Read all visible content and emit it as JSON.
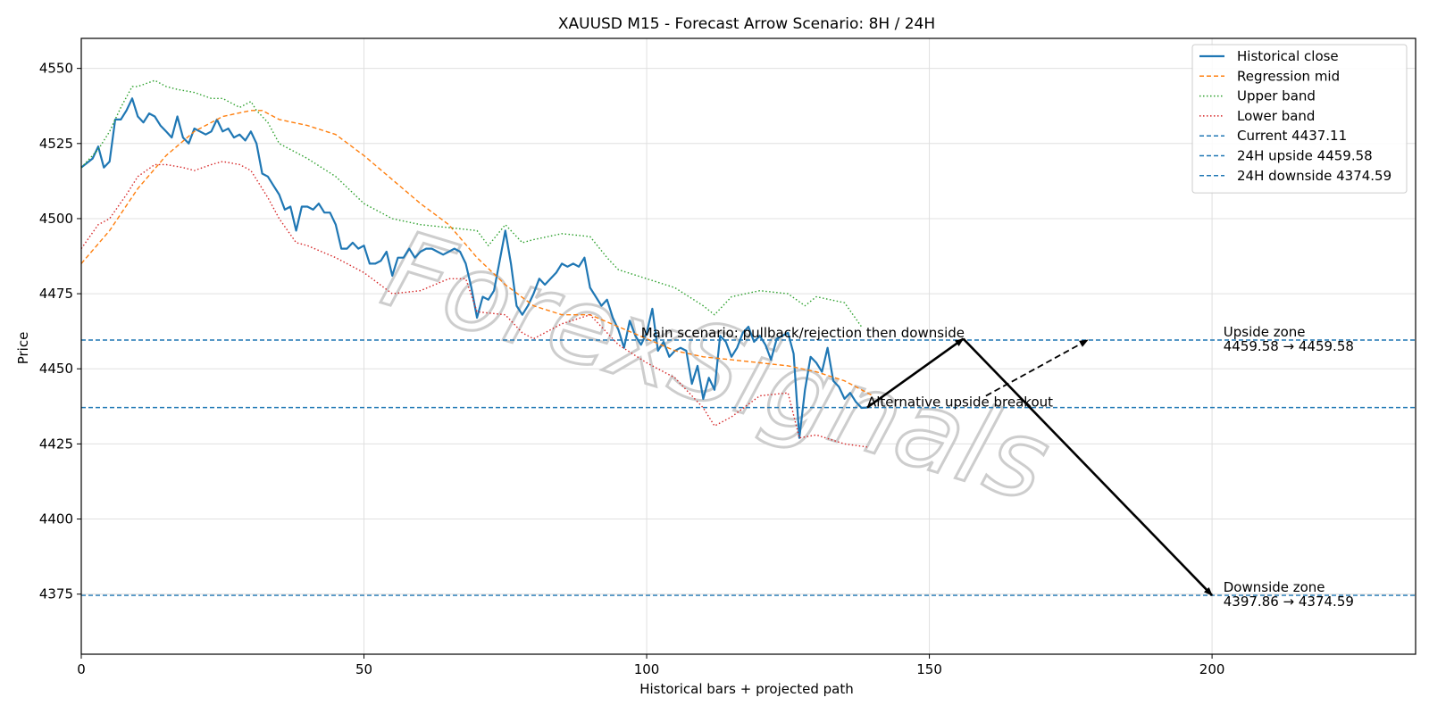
{
  "chart_data": {
    "type": "line",
    "title": "XAUUSD M15 - Forecast Arrow Scenario: 8H / 24H",
    "xlabel": "Historical bars + projected path",
    "ylabel": "Price",
    "xlim": [
      0,
      236
    ],
    "ylim": [
      4355,
      4560
    ],
    "x_ticks": [
      0,
      50,
      100,
      150,
      200
    ],
    "y_ticks": [
      4375,
      4400,
      4425,
      4450,
      4475,
      4500,
      4525,
      4550
    ],
    "grid": true,
    "legend_position": "top-right",
    "watermark": "ForexSignals",
    "series": [
      {
        "name": "Historical close",
        "style": "solid",
        "color": "#1f77b4",
        "x": [
          0,
          2,
          3,
          4,
          5,
          6,
          7,
          8,
          9,
          10,
          11,
          12,
          13,
          14,
          15,
          16,
          17,
          18,
          19,
          20,
          21,
          22,
          23,
          24,
          25,
          26,
          27,
          28,
          29,
          30,
          31,
          32,
          33,
          34,
          35,
          36,
          37,
          38,
          39,
          40,
          41,
          42,
          43,
          44,
          45,
          46,
          47,
          48,
          49,
          50,
          51,
          52,
          53,
          54,
          55,
          56,
          57,
          58,
          59,
          60,
          61,
          62,
          63,
          64,
          65,
          66,
          67,
          68,
          69,
          70,
          71,
          72,
          73,
          74,
          75,
          76,
          77,
          78,
          79,
          80,
          81,
          82,
          83,
          84,
          85,
          86,
          87,
          88,
          89,
          90,
          91,
          92,
          93,
          94,
          95,
          96,
          97,
          98,
          99,
          100,
          101,
          102,
          103,
          104,
          105,
          106,
          107,
          108,
          109,
          110,
          111,
          112,
          113,
          114,
          115,
          116,
          117,
          118,
          119,
          120,
          121,
          122,
          123,
          124,
          125,
          126,
          127,
          128,
          129,
          130,
          131,
          132,
          133,
          134,
          135,
          136,
          137,
          138,
          139
        ],
        "y": [
          4517,
          4520,
          4524,
          4517,
          4519,
          4533,
          4533,
          4536,
          4540,
          4534,
          4532,
          4535,
          4534,
          4531,
          4529,
          4527,
          4534,
          4527,
          4525,
          4530,
          4529,
          4528,
          4529,
          4533,
          4529,
          4530,
          4527,
          4528,
          4526,
          4529,
          4525,
          4515,
          4514,
          4511,
          4508,
          4503,
          4504,
          4496,
          4504,
          4504,
          4503,
          4505,
          4502,
          4502,
          4498,
          4490,
          4490,
          4492,
          4490,
          4491,
          4485,
          4485,
          4486,
          4489,
          4481,
          4487,
          4487,
          4490,
          4487,
          4489,
          4490,
          4490,
          4489,
          4488,
          4489,
          4490,
          4489,
          4485,
          4477,
          4467,
          4474,
          4473,
          4476,
          4486,
          4496,
          4485,
          4471,
          4468,
          4471,
          4475,
          4480,
          4478,
          4480,
          4482,
          4485,
          4484,
          4485,
          4484,
          4487,
          4477,
          4474,
          4471,
          4473,
          4467,
          4463,
          4457,
          4466,
          4461,
          4458,
          4462,
          4470,
          4456,
          4459,
          4454,
          4456,
          4457,
          4456,
          4445,
          4451,
          4440,
          4447,
          4443,
          4461,
          4459,
          4454,
          4457,
          4462,
          4464,
          4459,
          4461,
          4458,
          4453,
          4460,
          4461,
          4462,
          4455,
          4427,
          4443,
          4454,
          4452,
          4449,
          4457,
          4446,
          4444,
          4440,
          4442,
          4439,
          4437,
          4437.11
        ]
      },
      {
        "name": "Regression mid",
        "style": "dashed",
        "color": "#ff7f0e",
        "x": [
          0,
          5,
          10,
          15,
          20,
          25,
          30,
          32,
          35,
          40,
          45,
          50,
          55,
          60,
          65,
          70,
          75,
          80,
          85,
          90,
          95,
          100,
          105,
          110,
          115,
          120,
          125,
          130,
          135,
          140
        ],
        "y": [
          4485,
          4496,
          4510,
          4521,
          4529,
          4534,
          4536,
          4536,
          4533,
          4531,
          4528,
          4521,
          4513,
          4505,
          4498,
          4487,
          4478,
          4471,
          4468,
          4468,
          4464,
          4460,
          4456,
          4454,
          4453,
          4452,
          4451,
          4449,
          4446,
          4441
        ]
      },
      {
        "name": "Upper band",
        "style": "dotted",
        "color": "#2ca02c",
        "x": [
          0,
          3,
          5,
          7,
          9,
          10,
          13,
          15,
          17,
          20,
          23,
          25,
          28,
          30,
          31,
          33,
          35,
          38,
          40,
          45,
          50,
          55,
          60,
          65,
          70,
          72,
          75,
          78,
          80,
          85,
          90,
          93,
          95,
          100,
          105,
          110,
          112,
          115,
          120,
          125,
          128,
          130,
          135,
          138
        ],
        "y": [
          4517,
          4523,
          4529,
          4537,
          4544,
          4544,
          4546,
          4544,
          4543,
          4542,
          4540,
          4540,
          4537,
          4539,
          4536,
          4532,
          4525,
          4522,
          4520,
          4514,
          4505,
          4500,
          4498,
          4497,
          4496,
          4491,
          4498,
          4492,
          4493,
          4495,
          4494,
          4487,
          4483,
          4480,
          4477,
          4471,
          4468,
          4474,
          4476,
          4475,
          4471,
          4474,
          4472,
          4464
        ]
      },
      {
        "name": "Lower band",
        "style": "dotted",
        "color": "#d62728",
        "x": [
          0,
          3,
          5,
          8,
          10,
          13,
          15,
          18,
          20,
          23,
          25,
          28,
          30,
          33,
          35,
          38,
          40,
          45,
          50,
          55,
          60,
          65,
          68,
          70,
          75,
          78,
          80,
          85,
          90,
          95,
          100,
          105,
          110,
          112,
          115,
          120,
          125,
          127,
          130,
          135,
          139
        ],
        "y": [
          4490,
          4498,
          4500,
          4508,
          4514,
          4518,
          4518,
          4517,
          4516,
          4518,
          4519,
          4518,
          4516,
          4507,
          4500,
          4492,
          4491,
          4487,
          4482,
          4475,
          4476,
          4480,
          4480,
          4469,
          4468,
          4462,
          4460,
          4465,
          4468,
          4458,
          4452,
          4447,
          4437,
          4431,
          4434,
          4441,
          4442,
          4427,
          4428,
          4425,
          4424
        ]
      }
    ],
    "reference_lines": [
      {
        "name": "Current 4437.11",
        "value": 4437.11
      },
      {
        "name": "24H upside 4459.58",
        "value": 4459.58
      },
      {
        "name": "24H downside 4374.59",
        "value": 4374.59
      }
    ],
    "annotations": {
      "main_scenario": {
        "label": "Main scenario: pullback/rejection then downside",
        "label_at": [
          99,
          4461
        ],
        "path": [
          [
            139,
            4437.11
          ],
          [
            156,
            4460.0
          ],
          [
            200,
            4374.59
          ]
        ]
      },
      "alternative": {
        "label": "Alternative upside breakout",
        "label_at": [
          139,
          4438
        ],
        "path": [
          [
            160,
            4441.0
          ],
          [
            178,
            4459.58
          ]
        ]
      },
      "upside_zone": {
        "label": "Upside zone",
        "range": "4459.58 → 4459.58",
        "label_at": [
          202,
          4459.58
        ]
      },
      "downside_zone": {
        "label": "Downside zone",
        "range": "4397.86 → 4374.59",
        "label_at": [
          202,
          4374.59
        ]
      }
    }
  }
}
